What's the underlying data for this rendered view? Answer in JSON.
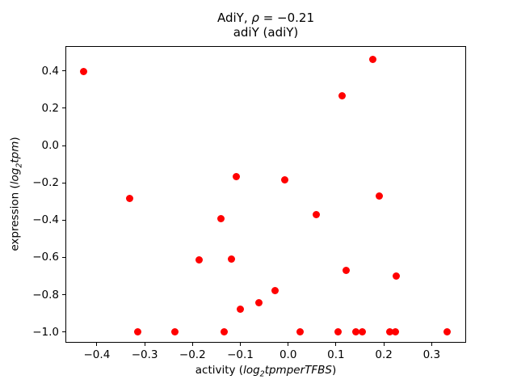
{
  "figure": {
    "title_line1_prefix": "AdiY, ",
    "title_rho": "ρ",
    "title_line1_suffix": " = −0.21",
    "title_line2": "adiY (adiY)"
  },
  "axes": {
    "xlabel": {
      "pre": "activity (",
      "log": "log",
      "sub": "2",
      "rest": "tpmperTFBS",
      "post": ")"
    },
    "ylabel": {
      "pre": "expression (",
      "log": "log",
      "sub": "2",
      "rest": "tpm",
      "post": ")"
    },
    "x_ticks": {
      "values": [
        -0.4,
        -0.3,
        -0.2,
        -0.1,
        0.0,
        0.1,
        0.2,
        0.3
      ],
      "labels": [
        "−0.4",
        "−0.3",
        "−0.2",
        "−0.1",
        "0.0",
        "0.1",
        "0.2",
        "0.3"
      ]
    },
    "y_ticks": {
      "values": [
        0.4,
        0.2,
        0.0,
        -0.2,
        -0.4,
        -0.6,
        -0.8,
        -1.0
      ],
      "labels": [
        "0.4",
        "0.2",
        "0.0",
        "−0.2",
        "−0.4",
        "−0.6",
        "−0.8",
        "−1.0"
      ]
    }
  },
  "chart_data": {
    "type": "scatter",
    "title": "AdiY, ρ = −0.21",
    "subtitle": "adiY (adiY)",
    "xlabel": "activity (log2 tpm per TFBS)",
    "ylabel": "expression (log2 tpm)",
    "correlation_rho": -0.21,
    "marker_color": "#ff0000",
    "marker_diameter_px": 9,
    "grid": false,
    "legend": "none",
    "xlim": [
      -0.4657,
      0.3721
    ],
    "ylim": [
      -1.0578,
      0.5337
    ],
    "points": [
      [
        -0.428,
        0.397
      ],
      [
        0.177,
        0.461
      ],
      [
        0.113,
        0.265
      ],
      [
        -0.108,
        -0.165
      ],
      [
        -0.007,
        -0.186
      ],
      [
        0.19,
        -0.269
      ],
      [
        -0.332,
        -0.285
      ],
      [
        0.058,
        -0.372
      ],
      [
        -0.14,
        -0.394
      ],
      [
        -0.186,
        -0.613
      ],
      [
        -0.119,
        -0.611
      ],
      [
        0.122,
        -0.671
      ],
      [
        0.226,
        -0.7
      ],
      [
        -0.027,
        -0.78
      ],
      [
        -0.062,
        -0.842
      ],
      [
        -0.1,
        -0.877
      ],
      [
        -0.315,
        -1.0
      ],
      [
        -0.236,
        -1.0
      ],
      [
        -0.134,
        -1.0
      ],
      [
        0.025,
        -1.0
      ],
      [
        0.105,
        -1.0
      ],
      [
        0.142,
        -1.0
      ],
      [
        0.155,
        -1.0
      ],
      [
        0.212,
        -1.0
      ],
      [
        0.225,
        -1.0
      ],
      [
        0.332,
        -1.0
      ]
    ]
  }
}
